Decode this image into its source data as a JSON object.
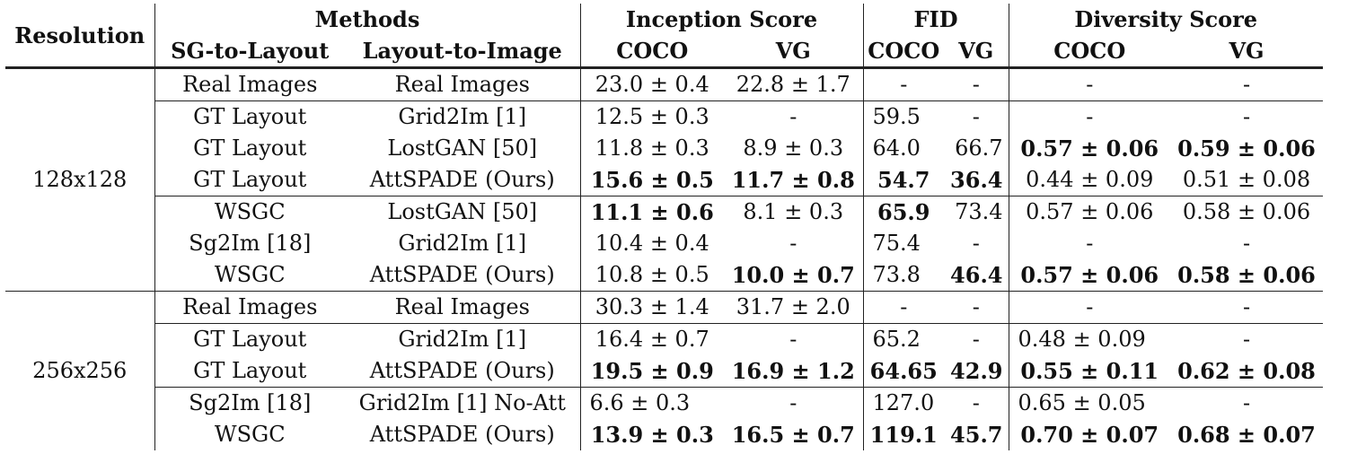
{
  "headers": {
    "resolution": "Resolution",
    "methods": "Methods",
    "sg_to_layout": "SG-to-Layout",
    "layout_to_image": "Layout-to-Image",
    "inception_score": "Inception Score",
    "fid": "FID",
    "diversity_score": "Diversity Score",
    "coco": "COCO",
    "vg": "VG"
  },
  "groups": [
    {
      "resolution": "128x128",
      "rows": [
        {
          "sg": "Real Images",
          "l2i": "Real Images",
          "is_coco": "23.0 ± 0.4",
          "is_vg": "22.8 ± 1.7",
          "fid_coco": "-",
          "fid_vg": "-",
          "ds_coco": "-",
          "ds_vg": "-"
        },
        {
          "sg": "GT Layout",
          "l2i": "Grid2Im [1]",
          "is_coco": "12.5 ± 0.3",
          "is_vg": "-",
          "fid_coco": "59.5",
          "fid_vg": "-",
          "ds_coco": "-",
          "ds_vg": "-"
        },
        {
          "sg": "GT Layout",
          "l2i": "LostGAN [50]",
          "is_coco": "11.8 ± 0.3",
          "is_vg": "8.9 ± 0.3",
          "fid_coco": "64.0",
          "fid_vg": "66.7",
          "ds_coco": "0.57 ± 0.06",
          "ds_vg": "0.59 ± 0.06"
        },
        {
          "sg": "GT Layout",
          "l2i": "AttSPADE (Ours)",
          "is_coco": "15.6 ± 0.5",
          "is_vg": "11.7 ± 0.8",
          "fid_coco": "54.7",
          "fid_vg": "36.4",
          "ds_coco": "0.44 ± 0.09",
          "ds_vg": "0.51 ± 0.08"
        },
        {
          "sg": "WSGC",
          "l2i": "LostGAN [50]",
          "is_coco": "11.1 ± 0.6",
          "is_vg": "8.1 ± 0.3",
          "fid_coco": "65.9",
          "fid_vg": "73.4",
          "ds_coco": "0.57 ± 0.06",
          "ds_vg": "0.58 ± 0.06"
        },
        {
          "sg": "Sg2Im [18]",
          "l2i": "Grid2Im [1]",
          "is_coco": "10.4 ± 0.4",
          "is_vg": "-",
          "fid_coco": "75.4",
          "fid_vg": "-",
          "ds_coco": "-",
          "ds_vg": "-"
        },
        {
          "sg": "WSGC",
          "l2i": "AttSPADE (Ours)",
          "is_coco": "10.8 ± 0.5",
          "is_vg": "10.0 ± 0.7",
          "fid_coco": "73.8",
          "fid_vg": "46.4",
          "ds_coco": "0.57 ± 0.06",
          "ds_vg": "0.58 ± 0.06"
        }
      ]
    },
    {
      "resolution": "256x256",
      "rows": [
        {
          "sg": "Real Images",
          "l2i": "Real Images",
          "is_coco": "30.3 ± 1.4",
          "is_vg": "31.7 ± 2.0",
          "fid_coco": "-",
          "fid_vg": "-",
          "ds_coco": "-",
          "ds_vg": "-"
        },
        {
          "sg": "GT Layout",
          "l2i": "Grid2Im [1]",
          "is_coco": "16.4 ± 0.7",
          "is_vg": "-",
          "fid_coco": "65.2",
          "fid_vg": "-",
          "ds_coco": "0.48 ± 0.09",
          "ds_vg": "-"
        },
        {
          "sg": "GT Layout",
          "l2i": "AttSPADE (Ours)",
          "is_coco": "19.5 ± 0.9",
          "is_vg": "16.9 ± 1.2",
          "fid_coco": "64.65",
          "fid_vg": "42.9",
          "ds_coco": "0.55 ± 0.11",
          "ds_vg": "0.62 ± 0.08"
        },
        {
          "sg": "Sg2Im [18]",
          "l2i": "Grid2Im [1] No-Att",
          "is_coco": "6.6 ± 0.3",
          "is_vg": "-",
          "fid_coco": "127.0",
          "fid_vg": "-",
          "ds_coco": "0.65 ± 0.05",
          "ds_vg": "-"
        },
        {
          "sg": "WSGC",
          "l2i": "AttSPADE (Ours)",
          "is_coco": "13.9 ± 0.3",
          "is_vg": "16.5 ± 0.7",
          "fid_coco": "119.1",
          "fid_vg": "45.7",
          "ds_coco": "0.70 ± 0.07",
          "ds_vg": "0.68 ± 0.07"
        }
      ]
    }
  ]
}
